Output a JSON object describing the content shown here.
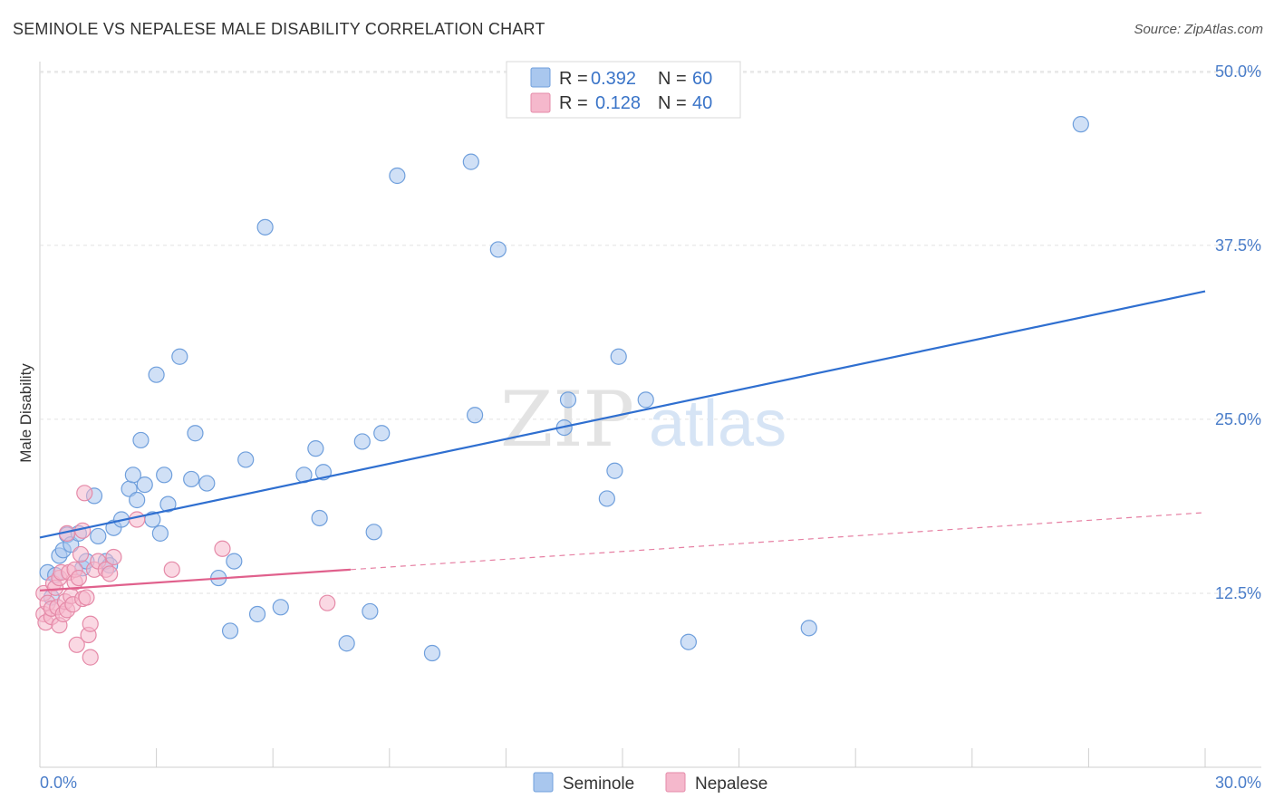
{
  "header": {
    "title": "SEMINOLE VS NEPALESE MALE DISABILITY CORRELATION CHART",
    "source": "Source: ZipAtlas.com"
  },
  "watermark": {
    "zip": "ZIP",
    "atlas": "atlas"
  },
  "legend": {
    "r_label": "R =",
    "n_label": "N =",
    "rows": [
      {
        "r": "0.392",
        "n": "60",
        "color": "#a9c7ee"
      },
      {
        "r": "0.128",
        "n": "40",
        "color": "#f5b8cc"
      }
    ]
  },
  "chart_data": {
    "type": "scatter",
    "title": "SEMINOLE VS NEPALESE MALE DISABILITY CORRELATION CHART",
    "xlabel": "",
    "ylabel": "Male Disability",
    "xlim": [
      0,
      30
    ],
    "ylim": [
      0,
      50.7
    ],
    "x_tick_labels": [
      "0.0%",
      "30.0%"
    ],
    "y_ticks": [
      12.5,
      25.0,
      37.5,
      50.0
    ],
    "y_tick_labels": [
      "12.5%",
      "25.0%",
      "37.5%",
      "50.0%"
    ],
    "series": [
      {
        "name": "Seminole",
        "color": "#a9c7ee",
        "stroke": "#6f9fdc",
        "line_color": "#2f6fd0",
        "trend": {
          "x": [
            0,
            30
          ],
          "y": [
            16.5,
            34.2
          ],
          "dashed": false
        },
        "points": [
          [
            0.2,
            14.0
          ],
          [
            0.4,
            13.8
          ],
          [
            0.5,
            15.2
          ],
          [
            0.6,
            15.6
          ],
          [
            0.7,
            16.7
          ],
          [
            0.8,
            16.0
          ],
          [
            1.0,
            16.8
          ],
          [
            1.1,
            14.3
          ],
          [
            1.2,
            14.8
          ],
          [
            1.4,
            19.5
          ],
          [
            1.5,
            16.6
          ],
          [
            1.7,
            14.8
          ],
          [
            1.8,
            14.5
          ],
          [
            1.9,
            17.2
          ],
          [
            2.1,
            17.8
          ],
          [
            2.3,
            20.0
          ],
          [
            2.4,
            21.0
          ],
          [
            2.5,
            19.2
          ],
          [
            2.6,
            23.5
          ],
          [
            2.7,
            20.3
          ],
          [
            2.9,
            17.8
          ],
          [
            3.0,
            28.2
          ],
          [
            3.1,
            16.8
          ],
          [
            3.2,
            21.0
          ],
          [
            3.3,
            18.9
          ],
          [
            3.6,
            29.5
          ],
          [
            3.9,
            20.7
          ],
          [
            4.0,
            24.0
          ],
          [
            4.3,
            20.4
          ],
          [
            4.6,
            13.6
          ],
          [
            4.9,
            9.8
          ],
          [
            5.0,
            14.8
          ],
          [
            5.3,
            22.1
          ],
          [
            5.6,
            11.0
          ],
          [
            5.8,
            38.8
          ],
          [
            6.2,
            11.5
          ],
          [
            6.8,
            21.0
          ],
          [
            7.1,
            22.9
          ],
          [
            7.2,
            17.9
          ],
          [
            7.3,
            21.2
          ],
          [
            7.9,
            8.9
          ],
          [
            8.3,
            23.4
          ],
          [
            8.5,
            11.2
          ],
          [
            8.6,
            16.9
          ],
          [
            8.8,
            24.0
          ],
          [
            9.2,
            42.5
          ],
          [
            10.1,
            8.2
          ],
          [
            11.1,
            43.5
          ],
          [
            11.2,
            25.3
          ],
          [
            11.8,
            37.2
          ],
          [
            13.5,
            24.4
          ],
          [
            13.6,
            26.4
          ],
          [
            14.6,
            19.3
          ],
          [
            14.8,
            21.3
          ],
          [
            14.9,
            29.5
          ],
          [
            15.6,
            26.4
          ],
          [
            16.7,
            9.0
          ],
          [
            19.8,
            10.0
          ],
          [
            26.8,
            46.2
          ],
          [
            0.3,
            12.2
          ]
        ]
      },
      {
        "name": "Nepalese",
        "color": "#f5b8cc",
        "stroke": "#e58aa8",
        "line_color": "#e0608c",
        "trend": {
          "x": [
            0,
            8.0,
            30
          ],
          "y": [
            12.7,
            14.2,
            18.3
          ],
          "dashed_after": 8.0
        },
        "points": [
          [
            0.1,
            12.5
          ],
          [
            0.1,
            11.0
          ],
          [
            0.15,
            10.4
          ],
          [
            0.2,
            11.8
          ],
          [
            0.3,
            10.8
          ],
          [
            0.3,
            11.4
          ],
          [
            0.35,
            13.2
          ],
          [
            0.4,
            12.9
          ],
          [
            0.45,
            11.5
          ],
          [
            0.5,
            10.2
          ],
          [
            0.5,
            13.6
          ],
          [
            0.55,
            14.0
          ],
          [
            0.6,
            11.0
          ],
          [
            0.65,
            11.9
          ],
          [
            0.7,
            16.8
          ],
          [
            0.7,
            11.3
          ],
          [
            0.75,
            14.0
          ],
          [
            0.8,
            12.3
          ],
          [
            0.85,
            11.7
          ],
          [
            0.9,
            13.3
          ],
          [
            0.9,
            14.2
          ],
          [
            0.95,
            8.8
          ],
          [
            1.0,
            13.6
          ],
          [
            1.05,
            15.3
          ],
          [
            1.1,
            17.0
          ],
          [
            1.1,
            12.1
          ],
          [
            1.15,
            19.7
          ],
          [
            1.2,
            12.2
          ],
          [
            1.25,
            9.5
          ],
          [
            1.3,
            7.9
          ],
          [
            1.3,
            10.3
          ],
          [
            1.4,
            14.2
          ],
          [
            1.5,
            14.8
          ],
          [
            1.7,
            14.2
          ],
          [
            1.8,
            13.9
          ],
          [
            1.9,
            15.1
          ],
          [
            2.5,
            17.8
          ],
          [
            3.4,
            14.2
          ],
          [
            4.7,
            15.7
          ],
          [
            7.4,
            11.8
          ]
        ]
      }
    ]
  },
  "bottom_legend": [
    {
      "label": "Seminole",
      "color": "#a9c7ee"
    },
    {
      "label": "Nepalese",
      "color": "#f5b8cc"
    }
  ]
}
